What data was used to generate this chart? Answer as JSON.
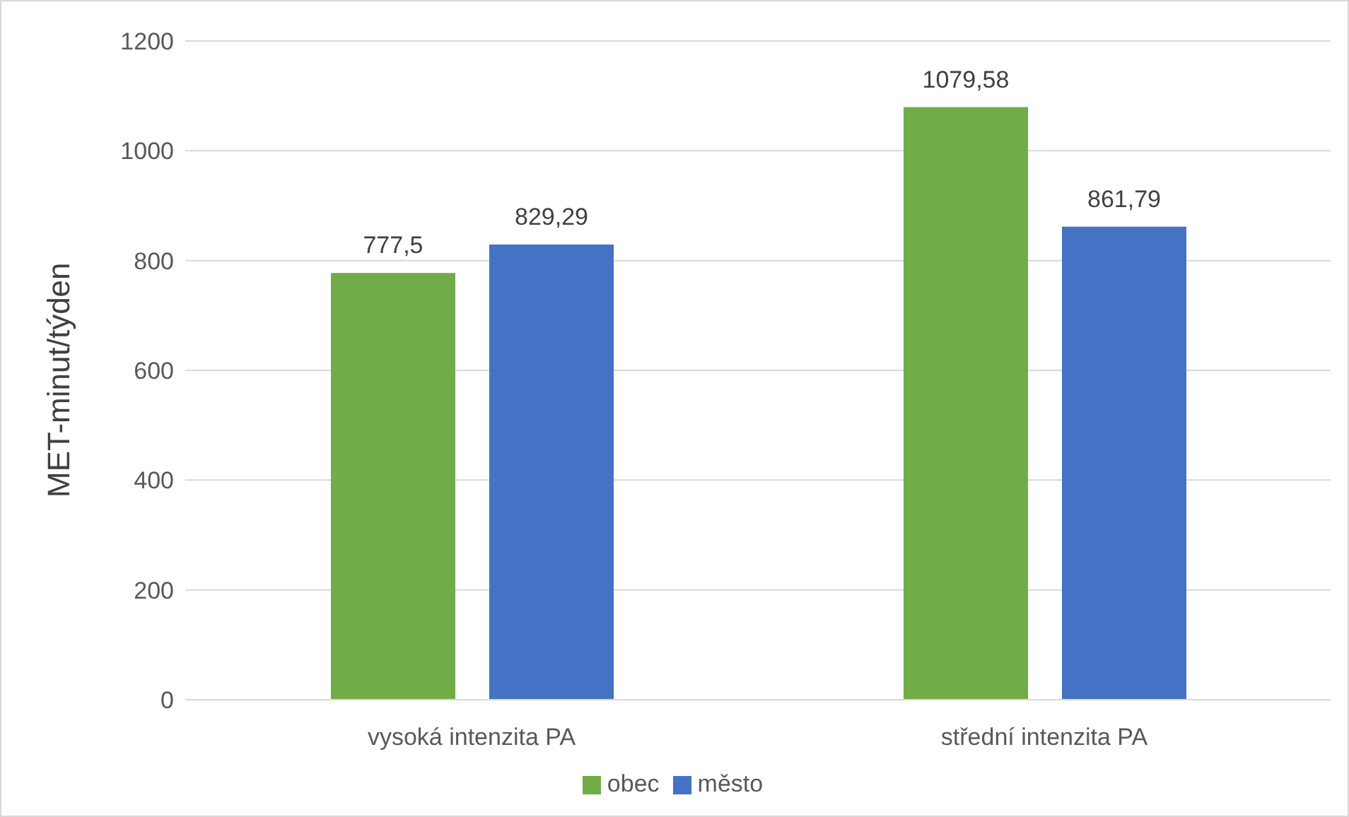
{
  "chart_data": {
    "type": "bar",
    "ylabel": "MET-minut/týden",
    "categories": [
      "vysoká intenzita PA",
      "střední intenzita PA"
    ],
    "series": [
      {
        "name": "obec",
        "color": "#70ad47",
        "values": [
          777.5,
          1079.58
        ],
        "value_labels": [
          "777,5",
          "1079,58"
        ]
      },
      {
        "name": "město",
        "color": "#4472c4",
        "values": [
          829.29,
          861.79
        ],
        "value_labels": [
          "829,29",
          "861,79"
        ]
      }
    ],
    "ylim": [
      0,
      1200
    ],
    "yticks": [
      0,
      200,
      400,
      600,
      800,
      1000,
      1200
    ],
    "grid": "y",
    "legend": "bottom"
  }
}
